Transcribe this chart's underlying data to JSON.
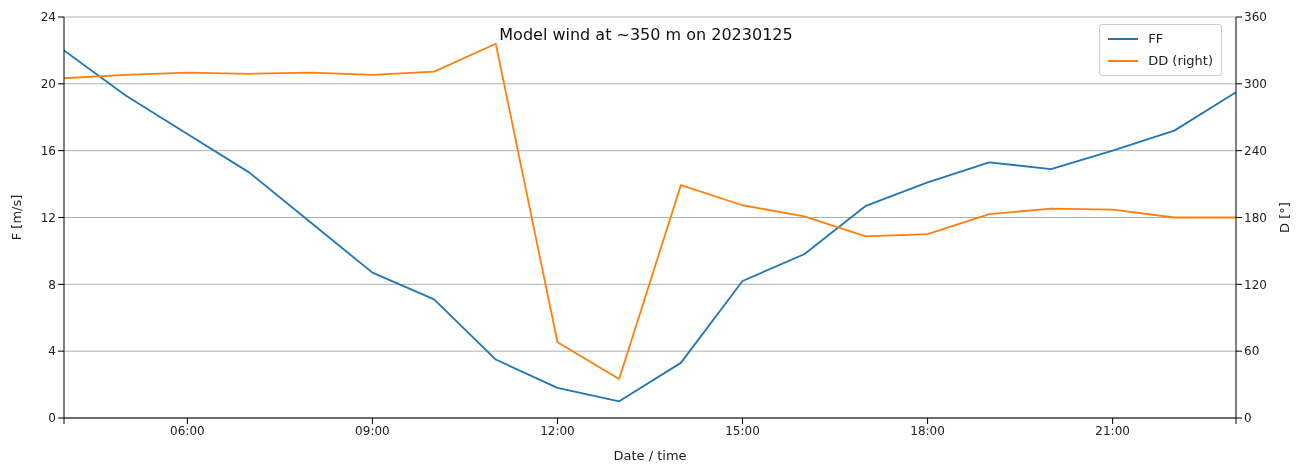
{
  "chart_data": {
    "type": "line",
    "title": "Model wind at ~350 m on 20230125",
    "xlabel": "Date / time",
    "ylabel": "F [m/s]",
    "y2label": "D [°]",
    "x": [
      4,
      5,
      6,
      7,
      8,
      9,
      10,
      11,
      12,
      13,
      14,
      15,
      16,
      17,
      18,
      19,
      20,
      21,
      22,
      23
    ],
    "series": [
      {
        "name": "FF",
        "color": "#1f77b4",
        "values": [
          22.0,
          19.3,
          17.0,
          14.7,
          11.7,
          8.7,
          7.1,
          3.5,
          1.8,
          1.0,
          3.3,
          8.2,
          9.8,
          12.7,
          14.1,
          15.3,
          14.9,
          16.0,
          17.2,
          19.5
        ]
      },
      {
        "name": "DD (right)",
        "color": "#ff7f0e",
        "axis": "y2",
        "values": [
          305,
          308,
          310,
          309,
          310,
          308,
          311,
          336,
          68,
          35,
          209,
          191,
          181,
          163,
          165,
          183,
          188,
          187,
          180,
          180
        ]
      }
    ],
    "xlim": [
      4,
      23
    ],
    "xticks": [
      {
        "value": 4,
        "label": null
      },
      {
        "value": 6,
        "label": "06:00"
      },
      {
        "value": 9,
        "label": "09:00"
      },
      {
        "value": 12,
        "label": "12:00"
      },
      {
        "value": 15,
        "label": "15:00"
      },
      {
        "value": 18,
        "label": "18:00"
      },
      {
        "value": 21,
        "label": "21:00"
      },
      {
        "value": 23,
        "label": null
      }
    ],
    "ylim": [
      0,
      24
    ],
    "yticks": [
      0,
      4,
      8,
      12,
      16,
      20,
      24
    ],
    "y2lim": [
      0,
      360
    ],
    "y2ticks": [
      0,
      60,
      120,
      180,
      240,
      300,
      360
    ],
    "grid": "y",
    "legend": "top right",
    "line_style": "solid",
    "marker": "none"
  }
}
